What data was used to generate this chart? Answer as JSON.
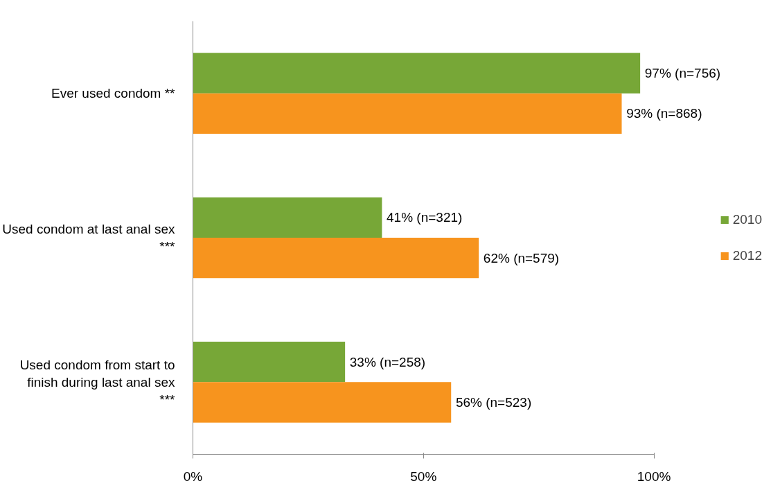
{
  "chart_data": {
    "type": "bar",
    "orientation": "horizontal",
    "categories": [
      "Ever used condom **",
      "Used condom at last anal sex ***",
      "Used condom from start to finish during last anal sex ***"
    ],
    "series": [
      {
        "name": "2010",
        "color": "#77a737",
        "values": [
          97,
          41,
          33
        ],
        "value_labels": [
          "97%  (n=756)",
          "41% (n=321)",
          "33% (n=258)"
        ]
      },
      {
        "name": "2012",
        "color": "#f7941e",
        "values": [
          93,
          62,
          56
        ],
        "value_labels": [
          "93% (n=868)",
          "62% (n=579)",
          "56% (n=523)"
        ]
      }
    ],
    "xlim": [
      0,
      100
    ],
    "xticks": [
      {
        "value": 0,
        "label": "0%"
      },
      {
        "value": 50,
        "label": "50%"
      },
      {
        "value": 100,
        "label": "100%"
      }
    ],
    "grid": false,
    "legend": "right"
  }
}
